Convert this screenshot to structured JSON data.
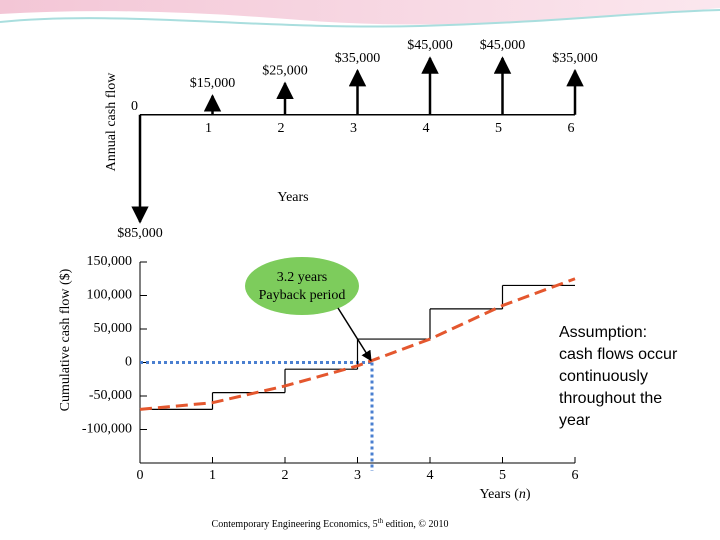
{
  "chart_data": [
    {
      "type": "cashflow",
      "ylabel": "Annual cash flow",
      "xlabel": "Years",
      "x": [
        0,
        1,
        2,
        3,
        4,
        5,
        6
      ],
      "xlim": [
        0,
        6
      ],
      "xticks": [
        0,
        1,
        2,
        3,
        4,
        5,
        6
      ],
      "values": [
        -85000,
        15000,
        25000,
        35000,
        45000,
        45000,
        35000
      ],
      "value_labels": [
        "$85,000",
        "$15,000",
        "$25,000",
        "$35,000",
        "$45,000",
        "$45,000",
        "$35,000"
      ],
      "ylim": [
        -85000,
        45000
      ],
      "color": "#000000"
    },
    {
      "type": "line",
      "ylabel": "Cumulative cash flow ($)",
      "xlabel": {
        "before": "Years (",
        "italic": "n",
        "after": ")"
      },
      "xlim": [
        0,
        6
      ],
      "xticks": [
        0,
        1,
        2,
        3,
        4,
        5,
        6
      ],
      "ylim": [
        -150000,
        150000
      ],
      "yticks": [
        {
          "value": 150000,
          "label": "150,000"
        },
        {
          "value": 100000,
          "label": "100,000"
        },
        {
          "value": 50000,
          "label": "50,000"
        },
        0,
        {
          "value": -50000,
          "label": "-50,000"
        },
        {
          "value": -100000,
          "label": "-100,000"
        }
      ],
      "series": [
        {
          "style": "step",
          "color": "#000000",
          "x": [
            0,
            1,
            2,
            3,
            4,
            5
          ],
          "values": [
            -70000,
            -45000,
            -10000,
            35000,
            80000,
            115000
          ]
        },
        {
          "style": "dashed",
          "color": "#e4572e",
          "x": [
            0,
            1,
            2,
            3,
            4,
            5,
            6
          ],
          "values": [
            -70000,
            -60000,
            -35000,
            -5000,
            35000,
            85000,
            125000
          ]
        }
      ],
      "payback": 3.2,
      "payback_color": "#4a7fd0",
      "annotation": {
        "lines": [
          "3.2 years",
          "Payback period"
        ],
        "color": "#7dcc5c"
      },
      "note": {
        "lines": [
          "Assumption:",
          "cash flows occur",
          "continuously",
          "throughout the",
          "year"
        ]
      }
    }
  ],
  "footer": {
    "before": "Contemporary Engineering Economics, 5",
    "sup": "th",
    "after": " edition, © 2010"
  }
}
